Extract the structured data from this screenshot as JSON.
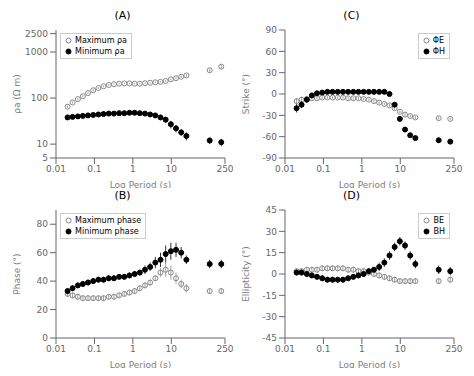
{
  "chart_data": [
    {
      "type": "scatter",
      "title": "(A)",
      "xlabel": "Log Period (s)",
      "ylabel": "ρa (Ω m)",
      "log": true,
      "grid": false,
      "legend": "upper left",
      "x": [
        0.02,
        0.027,
        0.037,
        0.05,
        0.068,
        0.093,
        0.127,
        0.173,
        0.236,
        0.322,
        0.439,
        0.599,
        0.816,
        1.113,
        1.517,
        2.069,
        2.821,
        3.846,
        5.243,
        7.148,
        9.745,
        13.29,
        18.12,
        24.7,
        100,
        200
      ],
      "xlim": [
        0.01,
        250
      ],
      "xticks": [
        0.01,
        0.1,
        1,
        10,
        250
      ],
      "ylim": [
        5,
        3000
      ],
      "yticks": [
        5,
        10,
        100,
        1000,
        2500
      ],
      "series": [
        {
          "name": "Maximum ρa",
          "color": "#888888",
          "marker": "open_circle",
          "values": [
            65,
            80,
            95,
            110,
            128,
            148,
            165,
            180,
            192,
            200,
            205,
            208,
            208,
            205,
            205,
            210,
            215,
            220,
            225,
            235,
            255,
            270,
            290,
            310,
            400,
            480
          ],
          "errors": [
            4,
            4,
            5,
            5,
            6,
            7,
            8,
            8,
            8,
            8,
            8,
            8,
            8,
            8,
            8,
            8,
            8,
            8,
            8,
            10,
            12,
            15,
            18,
            20,
            35,
            45
          ]
        },
        {
          "name": "Minimum ρa",
          "color": "black",
          "marker": "circle",
          "values": [
            38,
            39,
            40,
            41,
            42,
            43,
            44,
            45,
            46,
            46,
            47,
            47,
            48,
            48,
            47,
            46,
            44,
            42,
            38,
            34,
            27,
            22,
            18,
            15,
            12,
            11
          ],
          "errors": [
            3,
            3,
            3,
            3,
            3,
            3,
            3,
            3,
            3,
            3,
            3,
            3,
            3,
            3,
            4,
            4,
            4,
            5,
            5,
            5,
            5,
            4,
            3,
            3,
            2,
            2
          ]
        }
      ]
    },
    {
      "type": "scatter",
      "title": "(C)",
      "xlabel": "Log Period (s)",
      "ylabel": "Strike (°)",
      "log": "x",
      "grid": false,
      "legend": "upper right",
      "x": [
        0.02,
        0.027,
        0.037,
        0.05,
        0.068,
        0.093,
        0.127,
        0.173,
        0.236,
        0.322,
        0.439,
        0.599,
        0.816,
        1.113,
        1.517,
        2.069,
        2.821,
        3.846,
        5.243,
        7.148,
        9.745,
        13.29,
        18.12,
        24.7,
        100,
        200
      ],
      "xlim": [
        0.01,
        250
      ],
      "xticks": [
        0.01,
        0.1,
        1,
        10,
        250
      ],
      "ylim": [
        -90,
        90
      ],
      "yticks": [
        -90,
        -60,
        -30,
        0,
        30,
        60,
        90
      ],
      "series": [
        {
          "name": "ΦE",
          "color": "#888888",
          "marker": "open_circle",
          "values": [
            -10,
            -8,
            -7,
            -6,
            -6,
            -5,
            -5,
            -5,
            -5,
            -5,
            -6,
            -6,
            -6,
            -7,
            -8,
            -10,
            -12,
            -14,
            -16,
            -20,
            -25,
            -29,
            -31,
            -33,
            -34,
            -35
          ],
          "errors": [
            4,
            4,
            3,
            2,
            2,
            2,
            2,
            2,
            2,
            2,
            2,
            2,
            2,
            2,
            2,
            2,
            2,
            2,
            2,
            2,
            2,
            2,
            2,
            2,
            2,
            2
          ]
        },
        {
          "name": "ΦH",
          "color": "black",
          "marker": "circle",
          "values": [
            -20,
            -15,
            -8,
            -2,
            1,
            2,
            3,
            3,
            3,
            3,
            3,
            3,
            3,
            3,
            3,
            3,
            3,
            3,
            0,
            -15,
            -35,
            -50,
            -58,
            -62,
            -65,
            -67
          ],
          "errors": [
            6,
            5,
            4,
            3,
            3,
            2,
            2,
            2,
            2,
            2,
            2,
            2,
            2,
            2,
            2,
            2,
            2,
            2,
            3,
            3,
            3,
            3,
            3,
            3,
            3,
            3
          ]
        }
      ]
    },
    {
      "type": "scatter",
      "title": "(B)",
      "xlabel": "Log Period (s)",
      "ylabel": "Phase (°)",
      "log": "x",
      "grid": false,
      "legend": "upper left",
      "x": [
        0.02,
        0.027,
        0.037,
        0.05,
        0.068,
        0.093,
        0.127,
        0.173,
        0.236,
        0.322,
        0.439,
        0.599,
        0.816,
        1.113,
        1.517,
        2.069,
        2.821,
        3.846,
        5.243,
        7.148,
        9.745,
        13.29,
        18.12,
        24.7,
        100,
        200
      ],
      "xlim": [
        0.01,
        250
      ],
      "xticks": [
        0.01,
        0.1,
        1,
        10,
        250
      ],
      "ylim": [
        0,
        90
      ],
      "yticks": [
        0,
        20,
        40,
        60,
        80
      ],
      "series": [
        {
          "name": "Maximum phase",
          "color": "#888888",
          "marker": "open_circle",
          "values": [
            31,
            30,
            29,
            28,
            28,
            28,
            28,
            28,
            29,
            29,
            30,
            31,
            32,
            33,
            35,
            37,
            39,
            42,
            46,
            48,
            46,
            42,
            38,
            35,
            33,
            33
          ],
          "errors": [
            2,
            2,
            2,
            2,
            2,
            2,
            2,
            2,
            2,
            2,
            2,
            2,
            2,
            2,
            2,
            2,
            2,
            2,
            3,
            5,
            5,
            4,
            3,
            3,
            2,
            2
          ]
        },
        {
          "name": "Minimum phase",
          "color": "black",
          "marker": "circle",
          "values": [
            33,
            35,
            37,
            38,
            39,
            40,
            41,
            41,
            42,
            42,
            43,
            43,
            44,
            45,
            46,
            48,
            50,
            53,
            55,
            59,
            61,
            62,
            60,
            55,
            52,
            52
          ],
          "errors": [
            2,
            2,
            2,
            2,
            2,
            2,
            2,
            2,
            2,
            2,
            2,
            2,
            2,
            2,
            2,
            3,
            3,
            4,
            5,
            6,
            6,
            5,
            4,
            3,
            3,
            3
          ]
        }
      ]
    },
    {
      "type": "scatter",
      "title": "(D)",
      "xlabel": "Log Period (s)",
      "ylabel": "Ellipticity (°)",
      "log": "x",
      "grid": false,
      "legend": "upper right",
      "x": [
        0.02,
        0.027,
        0.037,
        0.05,
        0.068,
        0.093,
        0.127,
        0.173,
        0.236,
        0.322,
        0.439,
        0.599,
        0.816,
        1.113,
        1.517,
        2.069,
        2.821,
        3.846,
        5.243,
        7.148,
        9.745,
        13.29,
        18.12,
        24.7,
        100,
        200
      ],
      "xlim": [
        0.01,
        250
      ],
      "xticks": [
        0.01,
        0.1,
        1,
        10,
        250
      ],
      "ylim": [
        -45,
        45
      ],
      "yticks": [
        -45,
        -30,
        -15,
        0,
        15,
        30,
        45
      ],
      "series": [
        {
          "name": "BE",
          "color": "#888888",
          "marker": "open_circle",
          "values": [
            2,
            2,
            3,
            3,
            3,
            4,
            4,
            4,
            4,
            4,
            3,
            3,
            2,
            2,
            1,
            0,
            -1,
            -2,
            -3,
            -4,
            -5,
            -5,
            -5,
            -5,
            -5,
            -4
          ],
          "errors": [
            2,
            2,
            2,
            2,
            2,
            2,
            2,
            2,
            2,
            2,
            2,
            2,
            2,
            2,
            2,
            2,
            2,
            2,
            2,
            2,
            2,
            2,
            2,
            2,
            2,
            2
          ]
        },
        {
          "name": "BH",
          "color": "black",
          "marker": "circle",
          "values": [
            1,
            1,
            0,
            -1,
            -2,
            -3,
            -4,
            -4,
            -4,
            -4,
            -3,
            -2,
            -1,
            0,
            2,
            3,
            5,
            8,
            13,
            19,
            23,
            20,
            13,
            7,
            3,
            2
          ],
          "errors": [
            2,
            2,
            2,
            2,
            2,
            2,
            2,
            2,
            2,
            2,
            2,
            2,
            2,
            2,
            2,
            2,
            3,
            3,
            3,
            3,
            3,
            3,
            3,
            3,
            3,
            3
          ]
        }
      ]
    }
  ]
}
